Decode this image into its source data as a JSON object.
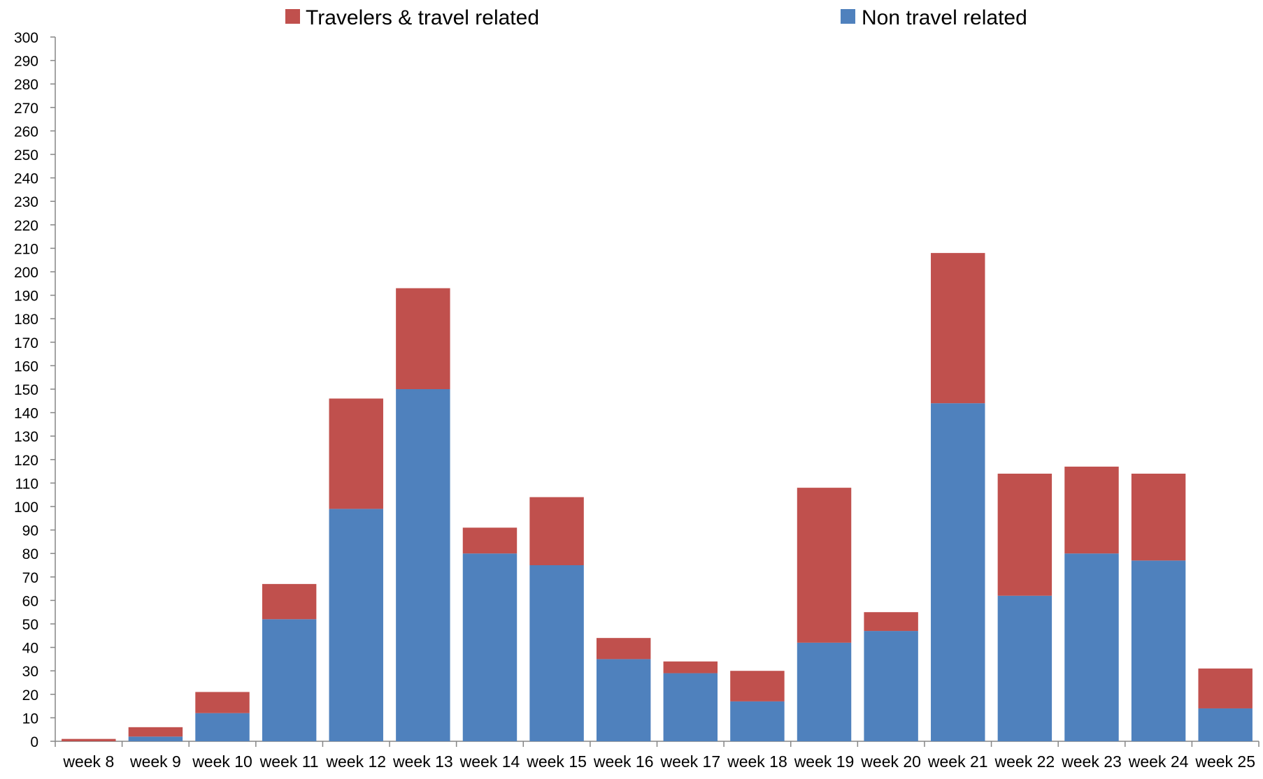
{
  "chart_data": {
    "type": "bar",
    "stacked": true,
    "title": "",
    "xlabel": "",
    "ylabel": "",
    "ylim": [
      0,
      300
    ],
    "y_tick_step": 10,
    "grid": false,
    "legend_placement": "top",
    "categories": [
      "week 8",
      "week 9",
      "week 10",
      "week 11",
      "week 12",
      "week 13",
      "week 14",
      "week 15",
      "week 16",
      "week 17",
      "week 18",
      "week 19",
      "week 20",
      "week 21",
      "week 22",
      "week 23",
      "week 24",
      "week 25"
    ],
    "series": [
      {
        "name": "Non travel related",
        "color": "#4F81BD",
        "values": [
          0,
          2,
          12,
          52,
          99,
          150,
          80,
          75,
          35,
          29,
          17,
          42,
          47,
          144,
          62,
          80,
          77,
          14
        ]
      },
      {
        "name": "Travelers & travel related",
        "color": "#C0504D",
        "values": [
          1,
          4,
          9,
          15,
          47,
          43,
          11,
          29,
          9,
          5,
          13,
          66,
          8,
          64,
          52,
          37,
          37,
          17
        ]
      }
    ],
    "legend_order": [
      "Travelers & travel related",
      "Non travel related"
    ]
  }
}
